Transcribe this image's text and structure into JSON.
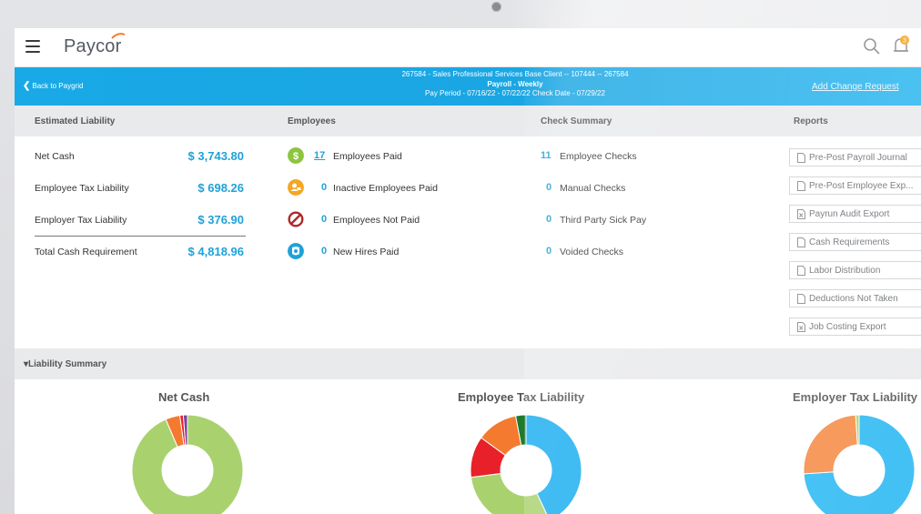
{
  "app": {
    "logo_text": "Paycor",
    "notification_count": "3"
  },
  "header": {
    "back_label": "Back to Paygrid",
    "client_line": "267584 - Sales Professional Services Base Client -- 107444 -- 267584",
    "payroll_line": "Payroll - Weekly",
    "period_line": "Pay Period - 07/16/22 - 07/22/22   Check Date - 07/29/22",
    "change_request_label": "Add Change Request"
  },
  "sections": {
    "estimated_liability": "Estimated Liability",
    "employees": "Employees",
    "check_summary": "Check Summary",
    "reports": "Reports"
  },
  "liability": [
    {
      "label": "Net Cash",
      "value": "$ 3,743.80"
    },
    {
      "label": "Employee Tax Liability",
      "value": "$ 698.26"
    },
    {
      "label": "Employer Tax Liability",
      "value": "$ 376.90"
    },
    {
      "label": "Total Cash Requirement",
      "value": "$ 4,818.96"
    }
  ],
  "employees": [
    {
      "count": "17",
      "label": "Employees Paid",
      "icon": "dollar-icon",
      "color": "#8cc63f"
    },
    {
      "count": "0",
      "label": "Inactive Employees Paid",
      "icon": "inactive-user-icon",
      "color": "#f5a623"
    },
    {
      "count": "0",
      "label": "Employees Not Paid",
      "icon": "prohibited-icon",
      "color": "#b0282a"
    },
    {
      "count": "0",
      "label": "New Hires Paid",
      "icon": "new-hire-icon",
      "color": "#1ea2d9"
    }
  ],
  "checks": [
    {
      "count": "11",
      "label": "Employee Checks"
    },
    {
      "count": "0",
      "label": "Manual Checks"
    },
    {
      "count": "0",
      "label": "Third Party Sick Pay"
    },
    {
      "count": "0",
      "label": "Voided Checks"
    }
  ],
  "reports": [
    {
      "label": "Pre-Post Payroll Journal"
    },
    {
      "label": "Pre-Post Employee Exp..."
    },
    {
      "label": "Payrun Audit Export"
    },
    {
      "label": "Cash Requirements"
    },
    {
      "label": "Labor Distribution"
    },
    {
      "label": "Deductions Not Taken"
    },
    {
      "label": "Job Costing Export"
    }
  ],
  "liability_summary": {
    "label": "Liability Summary"
  },
  "chart_data": [
    {
      "type": "pie",
      "title": "Net Cash",
      "slices": [
        {
          "value": 93.6,
          "color": "#a9d26f"
        },
        {
          "value": 4.2,
          "color": "#f47a30"
        },
        {
          "value": 1.0,
          "color": "#e8202a"
        },
        {
          "value": 1.2,
          "color": "#7a3fa0"
        }
      ]
    },
    {
      "type": "pie",
      "title": "Employee Tax Liability",
      "slices": [
        {
          "value": 43,
          "color": "#1aaef0"
        },
        {
          "value": 30,
          "color": "#a9d26f"
        },
        {
          "value": 12,
          "color": "#e8202a"
        },
        {
          "value": 12,
          "color": "#f47a30"
        },
        {
          "value": 3,
          "color": "#1f7a2e"
        }
      ]
    },
    {
      "type": "pie",
      "title": "Employer Tax Liability",
      "slices": [
        {
          "value": 74,
          "color": "#29b8f2"
        },
        {
          "value": 25,
          "color": "#f58a45"
        },
        {
          "value": 1,
          "color": "#a9d26f"
        }
      ]
    }
  ]
}
